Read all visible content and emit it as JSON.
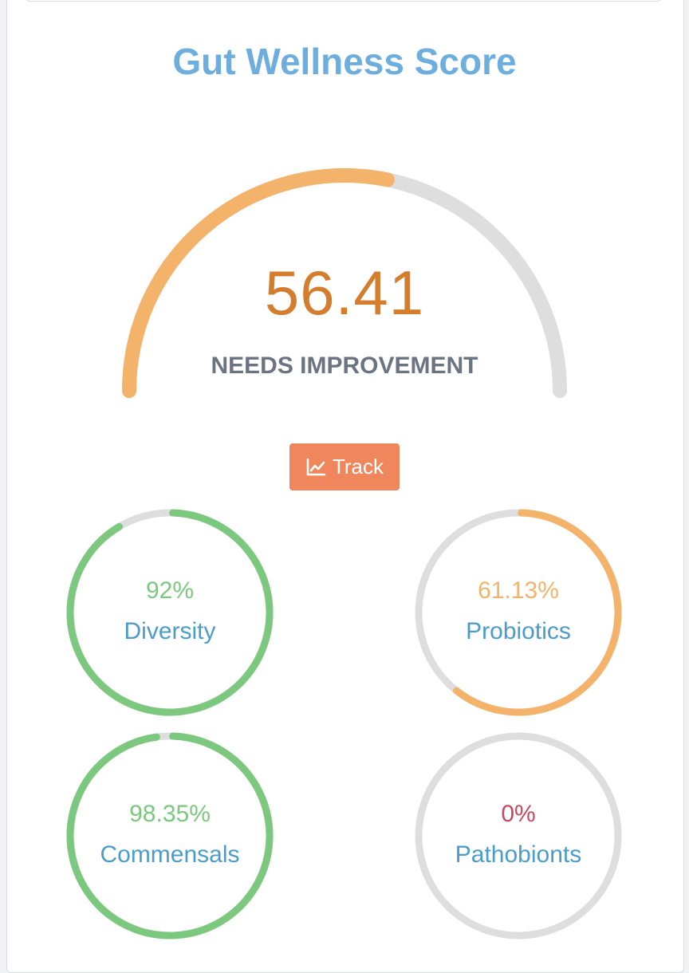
{
  "title": "Gut Wellness Score",
  "score": {
    "value": "56.41",
    "status": "NEEDS IMPROVEMENT",
    "fraction": 0.5641
  },
  "track_button": {
    "label": "Track",
    "icon": "line-chart-icon"
  },
  "metrics": [
    {
      "value": "92%",
      "label": "Diversity",
      "percent": 92,
      "color": "#7cc87e"
    },
    {
      "value": "61.13%",
      "label": "Probiotics",
      "percent": 61.13,
      "color": "#f4b36a"
    },
    {
      "value": "98.35%",
      "label": "Commensals",
      "percent": 98.35,
      "color": "#7cc87e"
    },
    {
      "value": "0%",
      "label": "Pathobionts",
      "percent": 0,
      "color": "#c8475f"
    }
  ],
  "colors": {
    "title": "#6daede",
    "score": "#d47d2c",
    "status": "#6b7480",
    "gauge_fill": "#f4b36a",
    "track": "#dedede",
    "button": "#f0875c",
    "metric_label": "#4a9ccb"
  }
}
